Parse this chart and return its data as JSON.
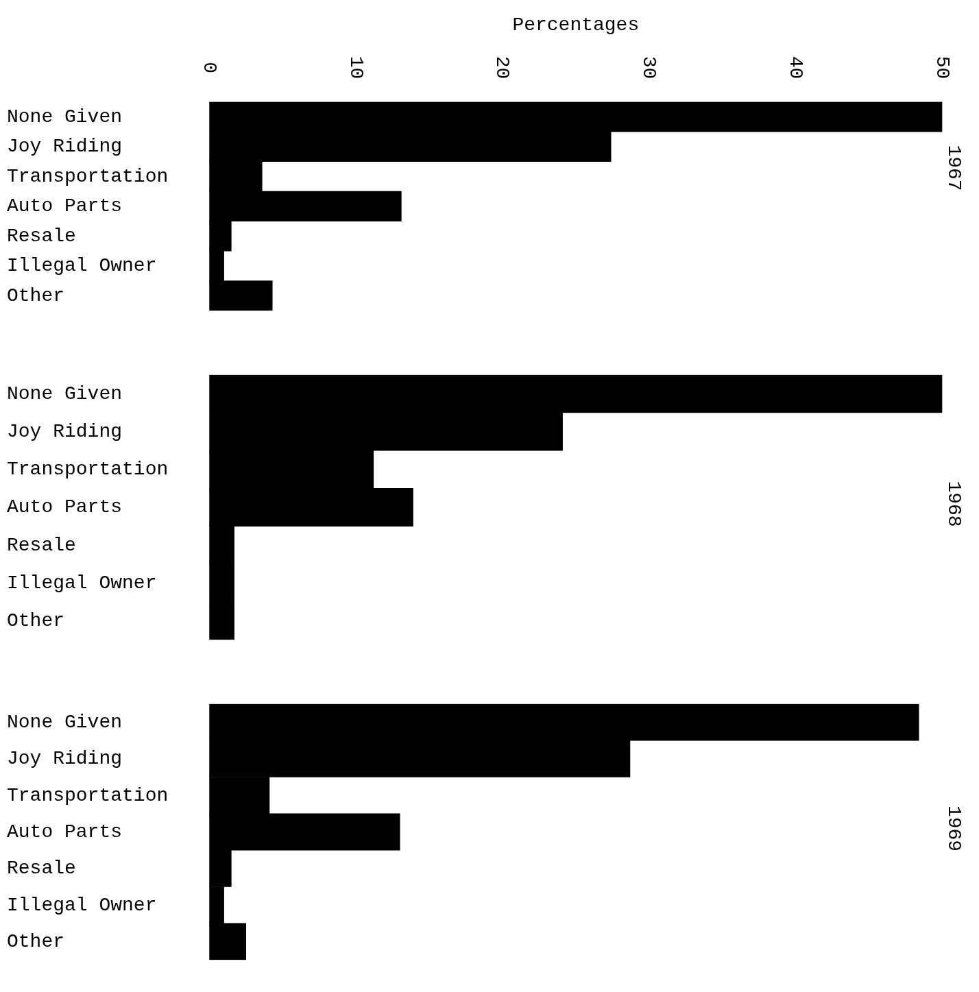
{
  "chart_data": [
    {
      "type": "bar",
      "orientation": "horizontal",
      "title": "1967",
      "xlabel": "Percentages",
      "categories": [
        "None Given",
        "Joy Riding",
        "Transportation",
        "Auto Parts",
        "Resale",
        "Illegal Owner",
        "Other"
      ],
      "values": [
        50,
        27.4,
        3.6,
        13.1,
        1.5,
        1.0,
        4.3
      ],
      "color": "#000000",
      "xlim": [
        0,
        50
      ],
      "xticks": [
        0,
        10,
        20,
        30,
        40,
        50
      ],
      "grid": false,
      "legend": false
    },
    {
      "type": "bar",
      "orientation": "horizontal",
      "title": "1968",
      "categories": [
        "None Given",
        "Joy Riding",
        "Transportation",
        "Auto Parts",
        "Resale",
        "Illegal Owner",
        "Other"
      ],
      "values": [
        50,
        24.1,
        11.2,
        13.9,
        1.7,
        1.7,
        1.7
      ],
      "color": "#000000",
      "xlim": [
        0,
        50
      ],
      "xticks": [
        0,
        10,
        20,
        30,
        40,
        50
      ],
      "tick_labels": "y",
      "grid": false,
      "legend": false
    },
    {
      "type": "bar",
      "orientation": "horizontal",
      "title": "1969",
      "categories": [
        "None Given",
        "Joy Riding",
        "Transportation",
        "Auto Parts",
        "Resale",
        "Illegal Owner",
        "Other"
      ],
      "values": [
        48.4,
        28.7,
        4.1,
        13.0,
        1.5,
        1.0,
        2.5
      ],
      "color": "#000000",
      "xlim": [
        0,
        50
      ],
      "xticks": [
        0,
        10,
        20,
        30,
        40,
        50
      ],
      "tick_labels": "y",
      "grid": false,
      "legend": false
    }
  ]
}
